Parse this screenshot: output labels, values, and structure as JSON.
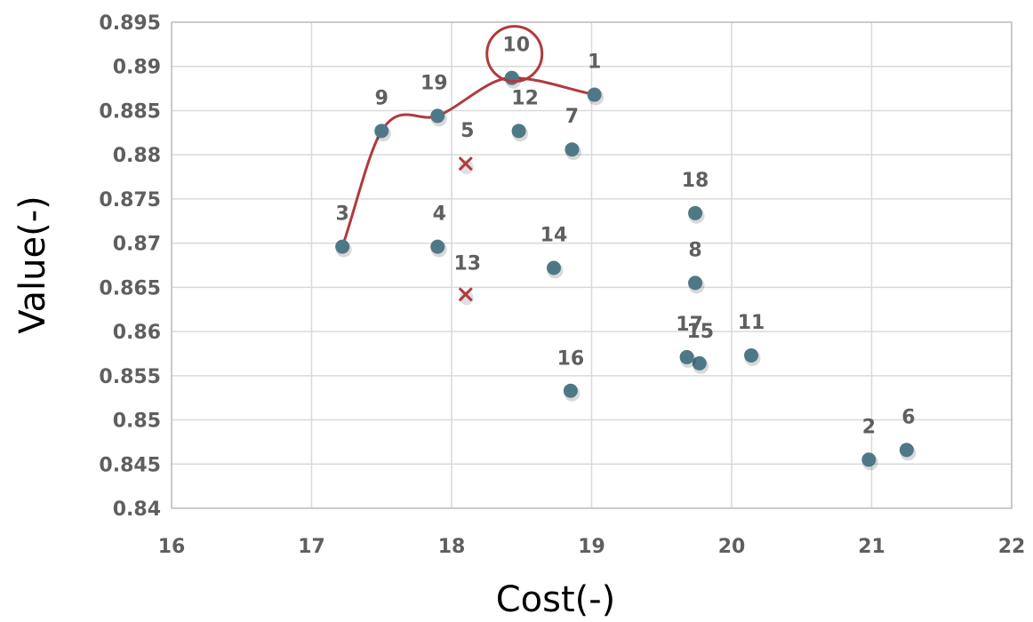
{
  "chart_data": {
    "type": "scatter",
    "xlabel": "Cost(-)",
    "ylabel": "Value(-)",
    "xlim": [
      16,
      22
    ],
    "ylim": [
      0.84,
      0.895
    ],
    "x_ticks": [
      "16",
      "17",
      "18",
      "19",
      "20",
      "21",
      "22"
    ],
    "y_ticks": [
      "0.84",
      "0.845",
      "0.85",
      "0.855",
      "0.86",
      "0.865",
      "0.87",
      "0.875",
      "0.88",
      "0.885",
      "0.89",
      "0.895"
    ],
    "grid": true,
    "colors": {
      "point": "#4e7886",
      "highlight": "#b03a3e",
      "grid": "#d9d9d9",
      "text": "#5f5f5f"
    },
    "points": [
      {
        "label": "1",
        "x": 19.02,
        "y": 0.8868,
        "marker": "dot"
      },
      {
        "label": "2",
        "x": 20.98,
        "y": 0.8455,
        "marker": "dot"
      },
      {
        "label": "3",
        "x": 17.22,
        "y": 0.8696,
        "marker": "dot"
      },
      {
        "label": "4",
        "x": 17.9,
        "y": 0.8696,
        "marker": "dot"
      },
      {
        "label": "5",
        "x": 18.1,
        "y": 0.879,
        "marker": "x"
      },
      {
        "label": "6",
        "x": 21.25,
        "y": 0.8466,
        "marker": "dot"
      },
      {
        "label": "7",
        "x": 18.86,
        "y": 0.8806,
        "marker": "dot"
      },
      {
        "label": "8",
        "x": 19.74,
        "y": 0.8655,
        "marker": "dot"
      },
      {
        "label": "9",
        "x": 17.5,
        "y": 0.8827,
        "marker": "dot"
      },
      {
        "label": "10",
        "x": 18.43,
        "y": 0.8887,
        "marker": "dot"
      },
      {
        "label": "11",
        "x": 20.14,
        "y": 0.8573,
        "marker": "dot"
      },
      {
        "label": "12",
        "x": 18.48,
        "y": 0.8827,
        "marker": "dot"
      },
      {
        "label": "13",
        "x": 18.1,
        "y": 0.8642,
        "marker": "x"
      },
      {
        "label": "14",
        "x": 18.73,
        "y": 0.8672,
        "marker": "dot"
      },
      {
        "label": "15",
        "x": 19.77,
        "y": 0.8564,
        "marker": "dot"
      },
      {
        "label": "16",
        "x": 18.85,
        "y": 0.8533,
        "marker": "dot"
      },
      {
        "label": "17",
        "x": 19.68,
        "y": 0.8571,
        "marker": "dot"
      },
      {
        "label": "18",
        "x": 19.74,
        "y": 0.8734,
        "marker": "dot"
      },
      {
        "label": "19",
        "x": 17.9,
        "y": 0.8844,
        "marker": "dot"
      }
    ],
    "frontier": {
      "x": [
        17.22,
        17.5,
        17.9,
        18.43,
        19.02
      ],
      "y": [
        0.8696,
        0.8827,
        0.8844,
        0.8887,
        0.8868
      ]
    },
    "highlighted_point": "10"
  }
}
